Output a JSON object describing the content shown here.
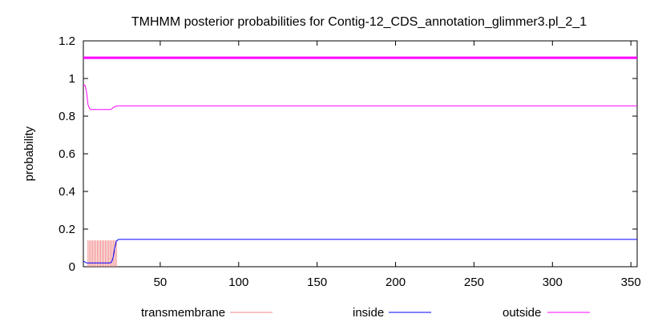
{
  "chart_data": {
    "type": "line",
    "title": "TMHMM posterior probabilities for Contig-12_CDS_annotation_glimmer3.pl_2_1",
    "xlabel": "",
    "ylabel": "probability",
    "xlim": [
      1,
      354
    ],
    "ylim": [
      0,
      1.2
    ],
    "x_ticks": [
      50,
      100,
      150,
      200,
      250,
      300,
      350
    ],
    "y_ticks": [
      0,
      0.2,
      0.4,
      0.6,
      0.8,
      1,
      1.2
    ],
    "y_tick_labels": [
      "0",
      "0.2",
      "0.4",
      "0.6",
      "0.8",
      "1",
      "1.2"
    ],
    "grid": false,
    "legend_position": "bottom",
    "colors": {
      "transmembrane": "#f08080",
      "inside": "#0000ff",
      "outside": "#ff00ff",
      "reference_line": "#ff00ff"
    },
    "reference_line": {
      "y": 1.11
    },
    "series": [
      {
        "name": "transmembrane",
        "style": "impulses",
        "x": [
          4,
          5,
          6,
          7,
          8,
          9,
          10,
          11,
          12,
          13,
          14,
          15,
          16,
          17,
          18,
          19,
          20,
          21,
          22
        ],
        "values": [
          0.14,
          0.14,
          0.14,
          0.14,
          0.14,
          0.14,
          0.14,
          0.14,
          0.14,
          0.14,
          0.14,
          0.14,
          0.14,
          0.14,
          0.14,
          0.14,
          0.14,
          0.14,
          0.14
        ]
      },
      {
        "name": "inside",
        "style": "line",
        "x": [
          1,
          2,
          3,
          5,
          8,
          12,
          16,
          18,
          19,
          20,
          21,
          22,
          23,
          24,
          26,
          30,
          354
        ],
        "values": [
          0.03,
          0.025,
          0.02,
          0.02,
          0.02,
          0.02,
          0.02,
          0.02,
          0.025,
          0.05,
          0.1,
          0.135,
          0.143,
          0.145,
          0.145,
          0.145,
          0.145
        ]
      },
      {
        "name": "outside",
        "style": "line",
        "x": [
          1,
          2,
          3,
          4,
          5,
          6,
          7,
          10,
          15,
          18,
          19,
          20,
          21,
          22,
          23,
          24,
          26,
          30,
          354
        ],
        "values": [
          0.965,
          0.965,
          0.93,
          0.86,
          0.84,
          0.835,
          0.835,
          0.835,
          0.835,
          0.835,
          0.838,
          0.845,
          0.85,
          0.853,
          0.855,
          0.855,
          0.855,
          0.855,
          0.855
        ]
      }
    ]
  }
}
